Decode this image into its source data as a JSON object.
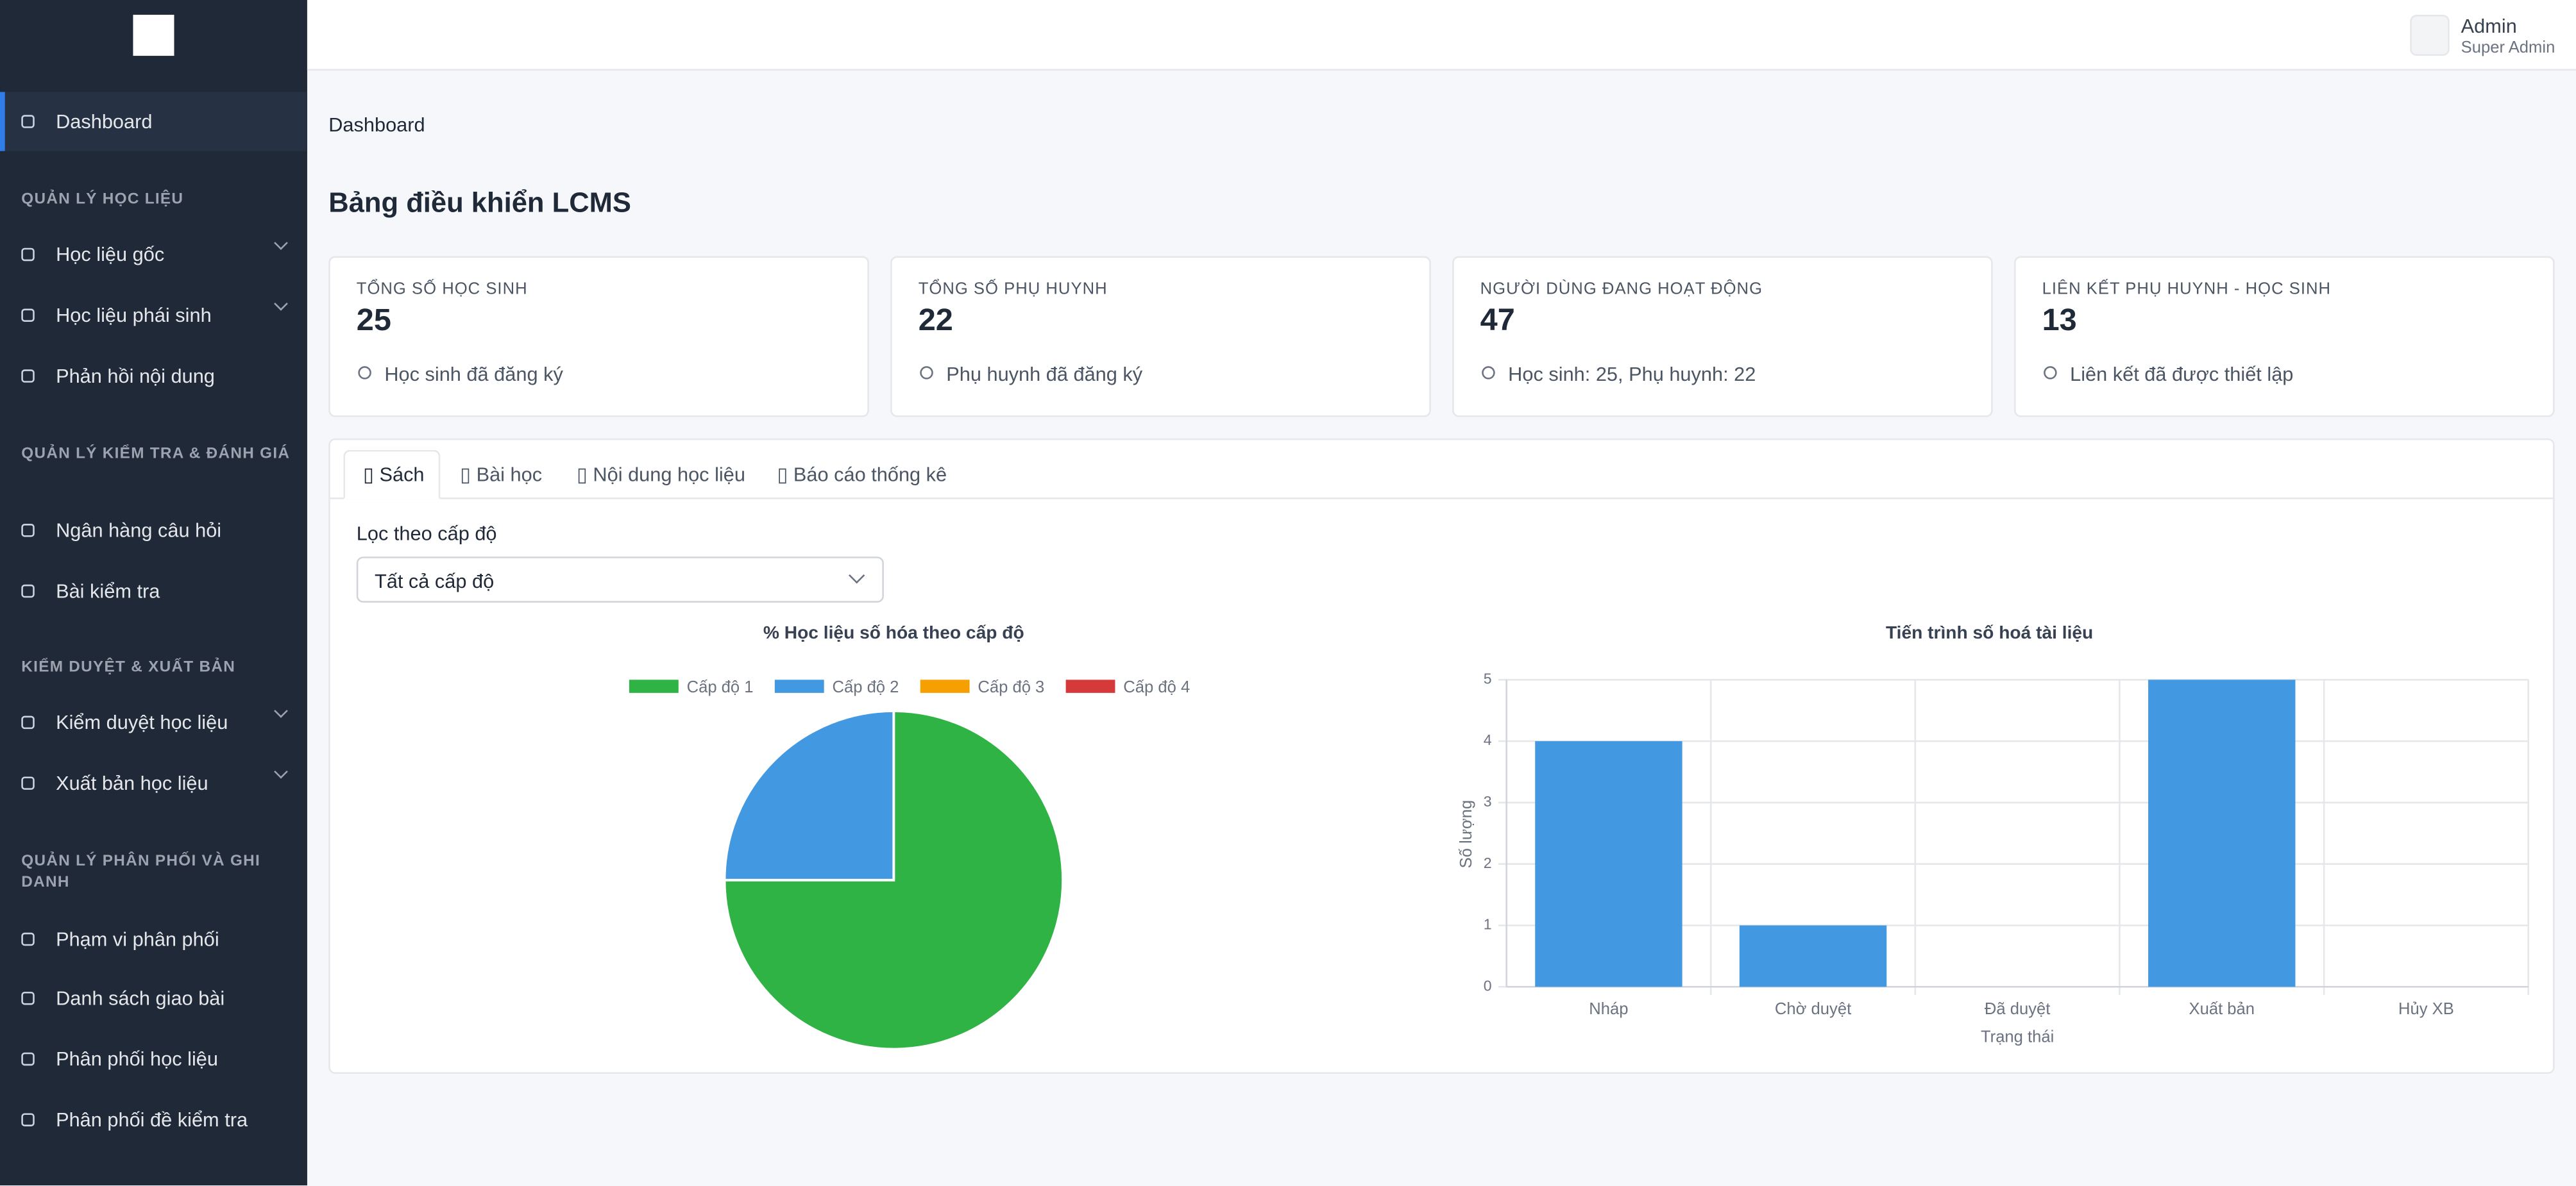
{
  "sidebar": {
    "dashboard": "Dashboard",
    "sections": [
      {
        "title": "QUẢN LÝ HỌC LIỆU",
        "items": [
          "Học liệu gốc",
          "Học liệu phái sinh",
          "Phản hồi nội dung"
        ]
      },
      {
        "title": "QUẢN LÝ KIỂM TRA & ĐÁNH GIÁ",
        "items": [
          "Ngân hàng câu hỏi",
          "Bài kiểm tra"
        ]
      },
      {
        "title": "KIỂM DUYỆT & XUẤT BẢN",
        "items": [
          "Kiểm duyệt học liệu",
          "Xuất bản học liệu"
        ]
      },
      {
        "title": "QUẢN LÝ PHÂN PHỐI VÀ GHI DANH",
        "items": [
          "Phạm vi phân phối",
          "Danh sách giao bài",
          "Phân phối học liệu",
          "Phân phối đề kiểm tra"
        ]
      }
    ]
  },
  "header": {
    "user_name": "Admin",
    "user_role": "Super Admin"
  },
  "breadcrumb": "Dashboard",
  "page_title": "Bảng điều khiển LCMS",
  "cards": [
    {
      "label": "TỔNG SỐ HỌC SINH",
      "value": "25",
      "note": "Học sinh đã đăng ký"
    },
    {
      "label": "TỔNG SỐ PHỤ HUYNH",
      "value": "22",
      "note": "Phụ huynh đã đăng ký"
    },
    {
      "label": "NGƯỜI DÙNG ĐANG HOẠT ĐỘNG",
      "value": "47",
      "note": "Học sinh: 25, Phụ huynh: 22"
    },
    {
      "label": "LIÊN KẾT PHỤ HUYNH - HỌC SINH",
      "value": "13",
      "note": "Liên kết đã được thiết lập"
    }
  ],
  "tabs": [
    "Sách",
    "Bài học",
    "Nội dung học liệu",
    "Báo cáo thống kê"
  ],
  "filter": {
    "label": "Lọc theo cấp độ",
    "selected": "Tất cả cấp độ"
  },
  "chart_data": [
    {
      "type": "pie",
      "title": "% Học liệu số hóa theo cấp độ",
      "categories": [
        "Cấp độ 1",
        "Cấp độ 2",
        "Cấp độ 3",
        "Cấp độ 4"
      ],
      "values": [
        75,
        25,
        0,
        0
      ],
      "colors": [
        "#2fb344",
        "#4299e1",
        "#f59f00",
        "#d63939"
      ]
    },
    {
      "type": "bar",
      "title": "Tiến trình số hoá tài liệu",
      "x_label": "Trạng thái",
      "y_label": "Số lượng",
      "categories": [
        "Nháp",
        "Chờ duyệt",
        "Đã duyệt",
        "Xuất bản",
        "Hủy XB"
      ],
      "values": [
        4,
        1,
        0,
        5,
        0
      ],
      "color": "#4299e1",
      "ylim": [
        0,
        5
      ],
      "yticks": [
        0,
        1,
        2,
        3,
        4,
        5
      ],
      "grid": true
    }
  ]
}
